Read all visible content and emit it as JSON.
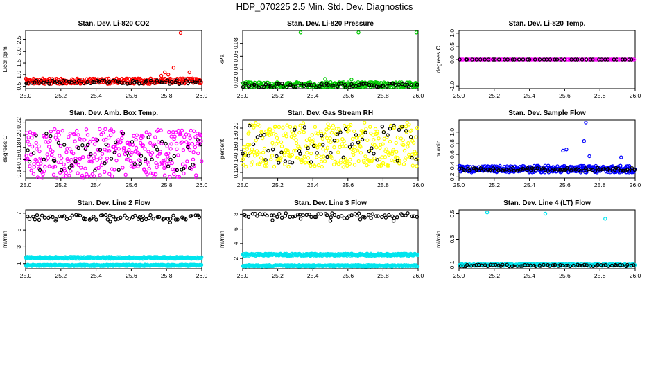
{
  "figure": {
    "title": "HDP_070225  2.5 Min. Std. Dev. Diagnostics"
  },
  "chart_data": [
    {
      "type": "scatter",
      "title": "Stan. Dev. Li-820 CO2",
      "xlabel": "",
      "ylabel": "Licor ppm",
      "xlim": [
        25.0,
        26.0
      ],
      "ylim": [
        0.4,
        2.9
      ],
      "x_ticks": [
        "25.0",
        "25.2",
        "25.4",
        "25.6",
        "25.8",
        "26.0"
      ],
      "y_ticks": [
        "0.5",
        "1.0",
        "1.5",
        "2.0",
        "2.5"
      ],
      "series": [
        {
          "color": "#ff0000",
          "baseline": 0.72,
          "spread": 0.12,
          "n": 260,
          "outliers": [
            [
              25.88,
              2.8
            ],
            [
              25.84,
              1.3
            ],
            [
              25.79,
              1.1
            ],
            [
              25.93,
              1.1
            ],
            [
              25.81,
              1.0
            ],
            [
              25.77,
              0.95
            ]
          ]
        },
        {
          "color": "#000000",
          "baseline": 0.68,
          "spread": 0.08,
          "n": 70,
          "outliers": []
        }
      ]
    },
    {
      "type": "scatter",
      "title": "Stan. Dev. Li-820 Pressure",
      "xlabel": "",
      "ylabel": "kPa",
      "xlim": [
        25.0,
        26.0
      ],
      "ylim": [
        0.01,
        0.1
      ],
      "x_ticks": [
        "25.0",
        "25.2",
        "25.4",
        "25.6",
        "25.8",
        "26.0"
      ],
      "y_ticks": [
        "0.02",
        "0.04",
        "0.06",
        "0.08"
      ],
      "series": [
        {
          "color": "#00cc00",
          "baseline": 0.016,
          "spread": 0.004,
          "n": 260,
          "outliers": [
            [
              25.33,
              0.097
            ],
            [
              25.66,
              0.097
            ],
            [
              25.99,
              0.097
            ],
            [
              25.47,
              0.025
            ],
            [
              25.62,
              0.024
            ]
          ]
        },
        {
          "color": "#000000",
          "baseline": 0.015,
          "spread": 0.003,
          "n": 70,
          "outliers": []
        }
      ]
    },
    {
      "type": "scatter",
      "title": "Stan. Dev. Li-820 Temp.",
      "xlabel": "",
      "ylabel": "degrees C",
      "xlim": [
        25.0,
        26.0
      ],
      "ylim": [
        -1.1,
        1.1
      ],
      "x_ticks": [
        "25.0",
        "25.2",
        "25.4",
        "25.6",
        "25.8",
        "26.0"
      ],
      "y_ticks": [
        "-1.0",
        "0.0",
        "0.5",
        "1.0"
      ],
      "series": [
        {
          "color": "#ff00ff",
          "baseline": 0.0,
          "spread": 0.0,
          "n": 130,
          "outliers": []
        },
        {
          "color": "#000000",
          "baseline": 0.0,
          "spread": 0.0,
          "n": 45,
          "outliers": []
        }
      ]
    },
    {
      "type": "scatter",
      "title": "Stan. Dev. Amb. Box Temp.",
      "xlabel": "",
      "ylabel": "degrees C",
      "xlim": [
        25.0,
        26.0
      ],
      "ylim": [
        0.13,
        0.225
      ],
      "x_ticks": [
        "25.0",
        "25.2",
        "25.4",
        "25.6",
        "25.8",
        "26.0"
      ],
      "y_ticks": [
        "0.14",
        "0.16",
        "0.18",
        "0.20",
        "0.22"
      ],
      "series": [
        {
          "color": "#ff00ff",
          "baseline": 0.17,
          "spread": 0.04,
          "n": 330,
          "outliers": []
        },
        {
          "color": "#000000",
          "baseline": 0.172,
          "spread": 0.032,
          "n": 55,
          "outliers": []
        }
      ]
    },
    {
      "type": "scatter",
      "title": "Stan. Dev. Gas Stream RH",
      "xlabel": "",
      "ylabel": "percent",
      "xlim": [
        25.0,
        26.0
      ],
      "ylim": [
        0.11,
        0.215
      ],
      "x_ticks": [
        "25.0",
        "25.2",
        "25.4",
        "25.6",
        "25.8",
        "26.0"
      ],
      "y_ticks": [
        "0.12",
        "0.14",
        "0.16",
        "0.18",
        "0.20"
      ],
      "series": [
        {
          "color": "#ffff00",
          "baseline": 0.17,
          "spread": 0.04,
          "n": 330,
          "outliers": []
        },
        {
          "color": "#000000",
          "baseline": 0.17,
          "spread": 0.035,
          "n": 55,
          "outliers": []
        }
      ]
    },
    {
      "type": "scatter",
      "title": "Stan. Dev. Sample Flow",
      "xlabel": "",
      "ylabel": "ml/min",
      "xlim": [
        25.0,
        26.0
      ],
      "ylim": [
        0.18,
        1.22
      ],
      "x_ticks": [
        "25.0",
        "25.2",
        "25.4",
        "25.6",
        "25.8",
        "26.0"
      ],
      "y_ticks": [
        "0.2",
        "0.4",
        "0.6",
        "0.8",
        "1.0"
      ],
      "series": [
        {
          "color": "#0000ff",
          "baseline": 0.34,
          "spread": 0.06,
          "n": 360,
          "outliers": [
            [
              25.72,
              1.17
            ],
            [
              25.71,
              0.84
            ],
            [
              25.61,
              0.69
            ],
            [
              25.59,
              0.67
            ],
            [
              25.92,
              0.55
            ],
            [
              25.74,
              0.57
            ]
          ]
        },
        {
          "color": "#000000",
          "baseline": 0.33,
          "spread": 0.03,
          "n": 90,
          "outliers": []
        }
      ]
    },
    {
      "type": "scatter",
      "title": "Stan. Dev. Line 2 Flow",
      "xlabel": "",
      "ylabel": "ml/min",
      "xlim": [
        25.0,
        26.0
      ],
      "ylim": [
        0.4,
        7.4
      ],
      "x_ticks": [
        "25.0",
        "25.2",
        "25.4",
        "25.6",
        "25.8",
        "26.0"
      ],
      "y_ticks": [
        "1",
        "3",
        "5",
        "7"
      ],
      "series": [
        {
          "color": "#00e5ee",
          "baseline": 1.7,
          "spread": 0.12,
          "n": 330,
          "outliers": []
        },
        {
          "color": "#00e5ee",
          "baseline": 0.8,
          "spread": 0.08,
          "n": 330,
          "outliers": []
        },
        {
          "color": "#000000",
          "baseline": 6.5,
          "spread": 0.3,
          "n": 65,
          "outliers": [
            [
              25.17,
              6.1
            ],
            [
              25.33,
              6.3
            ],
            [
              25.48,
              6.0
            ],
            [
              25.66,
              6.2
            ],
            [
              25.82,
              5.9
            ]
          ]
        }
      ]
    },
    {
      "type": "scatter",
      "title": "Stan. Dev. Line 3 Flow",
      "xlabel": "",
      "ylabel": "ml/min",
      "xlim": [
        25.0,
        26.0
      ],
      "ylim": [
        0.6,
        8.6
      ],
      "x_ticks": [
        "25.0",
        "25.2",
        "25.4",
        "25.6",
        "25.8",
        "26.0"
      ],
      "y_ticks": [
        "2",
        "4",
        "6",
        "8"
      ],
      "series": [
        {
          "color": "#00e5ee",
          "baseline": 2.5,
          "spread": 0.15,
          "n": 330,
          "outliers": []
        },
        {
          "color": "#00e5ee",
          "baseline": 1.0,
          "spread": 0.1,
          "n": 330,
          "outliers": []
        },
        {
          "color": "#000000",
          "baseline": 7.8,
          "spread": 0.35,
          "n": 65,
          "outliers": [
            [
              25.17,
              7.2
            ],
            [
              25.33,
              7.4
            ],
            [
              25.5,
              7.1
            ],
            [
              25.67,
              7.3
            ],
            [
              25.86,
              7.1
            ]
          ]
        }
      ]
    },
    {
      "type": "scatter",
      "title": "Stan. Dev. Line 4 (LT) Flow",
      "xlabel": "",
      "ylabel": "ml/min",
      "xlim": [
        25.0,
        26.0
      ],
      "ylim": [
        0.07,
        0.53
      ],
      "x_ticks": [
        "25.0",
        "25.2",
        "25.4",
        "25.6",
        "25.8",
        "26.0"
      ],
      "y_ticks": [
        "0.1",
        "0.3",
        "0.5"
      ],
      "series": [
        {
          "color": "#00e5ee",
          "baseline": 0.1,
          "spread": 0.008,
          "n": 330,
          "outliers": [
            [
              25.16,
              0.51
            ],
            [
              25.49,
              0.5
            ],
            [
              25.83,
              0.46
            ]
          ]
        },
        {
          "color": "#000000",
          "baseline": 0.095,
          "spread": 0.006,
          "n": 65,
          "outliers": []
        }
      ]
    }
  ]
}
